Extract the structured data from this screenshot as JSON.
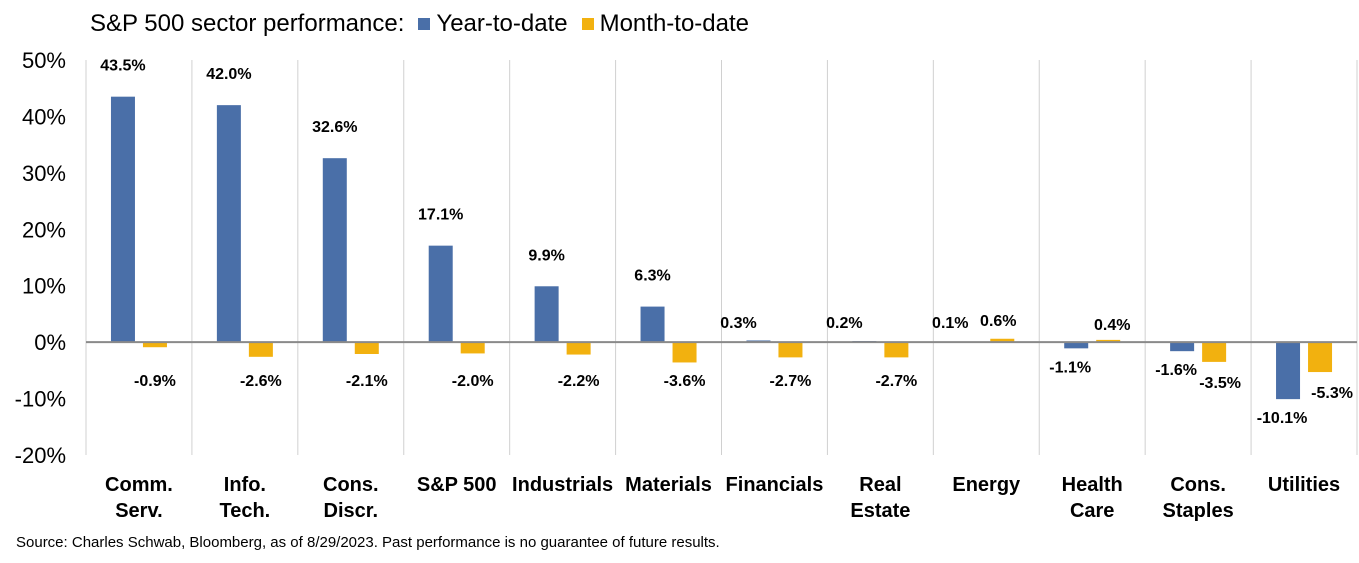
{
  "header": {
    "title": "S&P 500 sector performance:",
    "legend": [
      {
        "label": "Year-to-date",
        "color": "#4a6fa8"
      },
      {
        "label": "Month-to-date",
        "color": "#f2b10f"
      }
    ]
  },
  "source": "Source: Charles Schwab, Bloomberg, as of 8/29/2023. Past performance is no guarantee of future results.",
  "chart_data": {
    "type": "bar",
    "categories": [
      [
        "Comm.",
        "Serv."
      ],
      [
        "Info.",
        "Tech."
      ],
      [
        "Cons.",
        "Discr."
      ],
      [
        "S&P 500"
      ],
      [
        "Industrials"
      ],
      [
        "Materials"
      ],
      [
        "Financials"
      ],
      [
        "Real",
        "Estate"
      ],
      [
        "Energy"
      ],
      [
        "Health",
        "Care"
      ],
      [
        "Cons.",
        "Staples"
      ],
      [
        "Utilities"
      ]
    ],
    "series": [
      {
        "name": "Year-to-date",
        "color": "#4a6fa8",
        "values": [
          43.5,
          42.0,
          32.6,
          17.1,
          9.9,
          6.3,
          0.3,
          0.2,
          0.1,
          -1.1,
          -1.6,
          -10.1
        ],
        "labels": [
          "43.5%",
          "42.0%",
          "32.6%",
          "17.1%",
          "9.9%",
          "6.3%",
          "0.3%",
          "0.2%",
          "0.1%",
          "-1.1%",
          "-1.6%",
          "-10.1%"
        ]
      },
      {
        "name": "Month-to-date",
        "color": "#f2b10f",
        "values": [
          -0.9,
          -2.6,
          -2.1,
          -2.0,
          -2.2,
          -3.6,
          -2.7,
          -2.7,
          0.6,
          0.4,
          -3.5,
          -5.3
        ],
        "labels": [
          "-0.9%",
          "-2.6%",
          "-2.1%",
          "-2.0%",
          "-2.2%",
          "-3.6%",
          "-2.7%",
          "-2.7%",
          "0.6%",
          "0.4%",
          "-3.5%",
          "-5.3%"
        ]
      }
    ],
    "ylim": [
      -20,
      50
    ],
    "yticks": [
      50,
      40,
      30,
      20,
      10,
      0,
      -10,
      -20
    ],
    "ytick_labels": [
      "50%",
      "40%",
      "30%",
      "20%",
      "10%",
      "0%",
      "-10%",
      "-20%"
    ],
    "grid": "vertical category separators",
    "legend_position": "top"
  }
}
